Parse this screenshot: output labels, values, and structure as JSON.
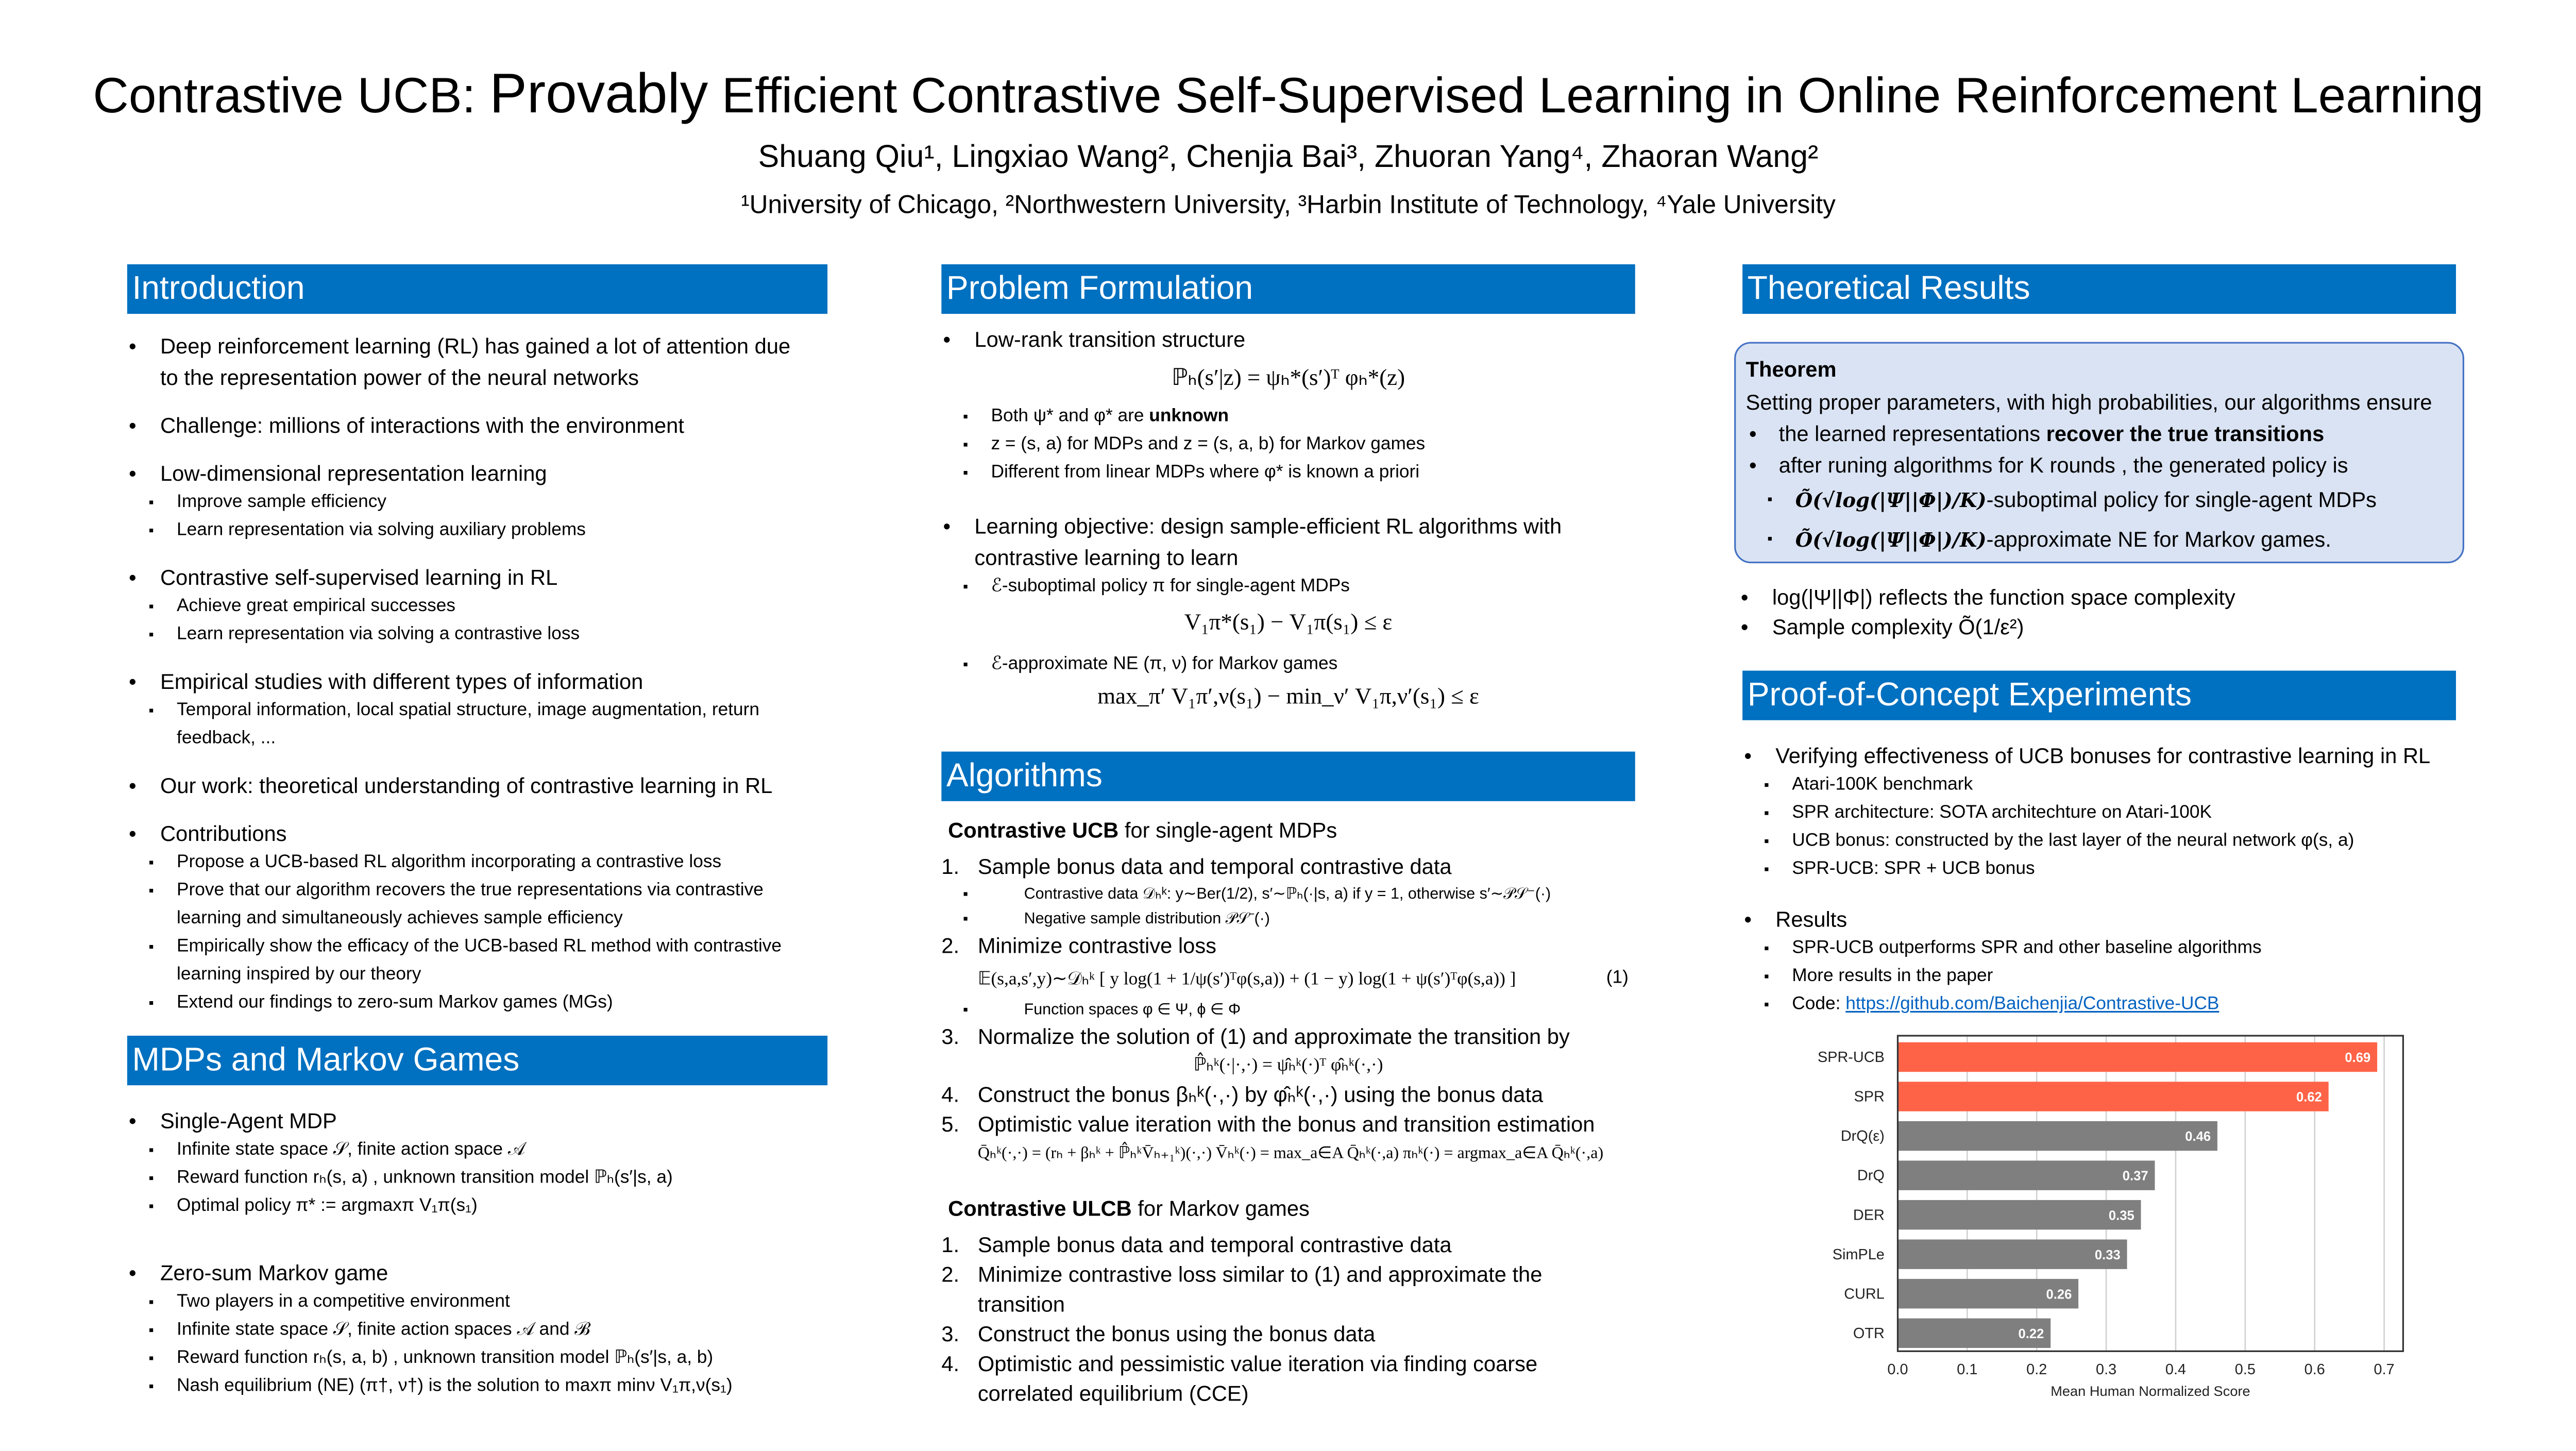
{
  "title": {
    "part1": "Contrastive UCB:",
    "part2": "Provably",
    "part3": "Efficient Contrastive Self-Supervised Learning in Online Reinforcement Learning"
  },
  "authors": "Shuang Qiu¹, Lingxiao Wang², Chenjia Bai³, Zhuoran Yang⁴, Zhaoran Wang²",
  "affiliations": "¹University of Chicago, ²Northwestern University, ³Harbin Institute of Technology, ⁴Yale University",
  "colors": {
    "header": "#0070c0",
    "theorem_bg": "#dae3f3",
    "theorem_border": "#4472c4",
    "highlight_bar": "#ff6347",
    "baseline_bar": "#7f7f7f"
  },
  "intro": {
    "heading": "Introduction",
    "items": [
      {
        "text": "Deep reinforcement learning (RL) has gained a lot of attention due to the representation power of the neural networks",
        "subs": []
      },
      {
        "text": "Challenge: millions of interactions with the environment",
        "subs": []
      },
      {
        "text": "Low-dimensional representation learning",
        "subs": [
          "Improve sample efficiency",
          "Learn representation via solving auxiliary problems"
        ]
      },
      {
        "text": "Contrastive self-supervised learning in RL",
        "subs": [
          "Achieve great empirical successes",
          "Learn representation via solving a contrastive loss"
        ]
      },
      {
        "text": "Empirical studies with different types of information",
        "subs": [
          "Temporal information, local spatial structure, image augmentation, return feedback, ..."
        ]
      },
      {
        "text": "Our work: theoretical understanding of contrastive learning in RL",
        "subs": []
      },
      {
        "text": "Contributions",
        "subs": [
          "Propose a UCB-based RL algorithm incorporating a contrastive loss",
          "Prove that our algorithm recovers the true representations via contrastive learning and simultaneously achieves sample efficiency",
          "Empirically show the efficacy of the UCB-based RL method with contrastive learning inspired by our theory",
          "Extend our findings to zero-sum Markov games (MGs)"
        ]
      }
    ]
  },
  "mdps": {
    "heading": "MDPs and Markov Games",
    "items": [
      {
        "text": "Single-Agent MDP",
        "subs": [
          "Infinite state space 𝒮, finite action space 𝒜",
          "Reward function rₕ(s, a) , unknown transition model ℙₕ(s′|s, a)",
          "Optimal policy π* := argmaxπ V₁π(s₁)"
        ]
      },
      {
        "text": "Zero-sum Markov game",
        "subs": [
          "Two players in a competitive environment",
          "Infinite state space 𝒮, finite action spaces 𝒜 and ℬ",
          "Reward function rₕ(s, a, b) , unknown transition model ℙₕ(s′|s, a, b)",
          "Nash equilibrium (NE) (π†, ν†) is the solution to  maxπ minν V₁π,ν(s₁)"
        ]
      }
    ]
  },
  "problem": {
    "heading": "Problem Formulation",
    "item1": "Low-rank transition structure",
    "eq1": "ℙₕ(s′|z) = ψₕ*(s′)ᵀ φₕ*(z)",
    "subs1_a": "Both ψ* and φ* are ",
    "subs1_a_bold": "unknown",
    "subs1": [
      "z = (s, a) for MDPs and z = (s, a, b) for Markov games",
      "Different from linear MDPs where φ* is known a priori"
    ],
    "item2": "Learning objective: design sample-efficient RL algorithms with contrastive learning to learn",
    "sub2a": "ℰ-suboptimal policy π for single-agent MDPs",
    "eq2": "V₁π*(s₁) − V₁π(s₁) ≤ ε",
    "sub2b": "ℰ-approximate NE (π, ν) for Markov games",
    "eq3": "max_π′ V₁π′,ν(s₁) − min_ν′ V₁π,ν′(s₁) ≤ ε"
  },
  "algorithms": {
    "heading": "Algorithms",
    "ucb_title_bold": "Contrastive UCB",
    "ucb_title_rest": " for single-agent MDPs",
    "steps": [
      {
        "n": "1.",
        "text": "Sample bonus data and temporal contrastive data",
        "subs": [
          "Contrastive data 𝒟ₕᵏ: y∼Ber(1/2), s′∼ℙₕ(·|s, a) if y = 1, otherwise s′∼𝒫𝒮⁻(·)",
          "Negative sample distribution 𝒫𝒮⁻(·)"
        ]
      },
      {
        "n": "2.",
        "text": "Minimize contrastive loss",
        "subs": []
      },
      {
        "n": "3.",
        "text": "Normalize the solution of (1) and approximate the transition by",
        "subs": []
      },
      {
        "n": "4.",
        "text": "Construct the bonus βₕᵏ(·,·) by φ̂ₕᵏ(·,·) using the bonus data",
        "subs": []
      },
      {
        "n": "5.",
        "text": "Optimistic value iteration with the bonus and transition estimation",
        "subs": []
      }
    ],
    "loss_eq": "𝔼(s,a,s′,y)∼𝒟ₕᵏ [ y log(1 + 1/ψ(s′)ᵀφ(s,a)) + (1 − y) log(1 + ψ(s′)ᵀφ(s,a)) ]",
    "loss_label": "(1)",
    "func_spaces": "Function spaces φ ∈ Ψ, ϕ ∈ Φ",
    "transition_eq": "ℙ̂ₕᵏ(·|·,·) = ψ̂ₕᵏ(·)ᵀ φ̂ₕᵏ(·,·)",
    "vi_eq": "Q̄ₕᵏ(·,·) = (rₕ + βₕᵏ + ℙ̂ₕᵏV̄ₕ₊₁ᵏ)(·,·)    V̄ₕᵏ(·) = max_a∈A Q̄ₕᵏ(·,a)    πₕᵏ(·) = argmax_a∈A Q̄ₕᵏ(·,a)",
    "ulcb_title_bold": "Contrastive ULCB",
    "ulcb_title_rest": " for Markov games",
    "ulcb_steps": [
      {
        "n": "1.",
        "text": "Sample bonus data and temporal contrastive data"
      },
      {
        "n": "2.",
        "text": "Minimize contrastive loss similar to (1) and approximate the transition"
      },
      {
        "n": "3.",
        "text": "Construct the bonus using the bonus data"
      },
      {
        "n": "4.",
        "text": "Optimistic and pessimistic value iteration via finding coarse correlated equilibrium (CCE)"
      }
    ]
  },
  "theory": {
    "heading": "Theoretical Results",
    "thm_title": "Theorem",
    "thm_intro": "Setting proper parameters, with high probabilities, our algorithms ensure",
    "b1_pre": "the learned representations ",
    "b1_bold": "recover the true transitions",
    "b2": "after runing algorithms for K rounds , the generated policy is",
    "sub_bound": "Õ(√log(|Ψ||Φ|)/K)",
    "sub1_rest": "-suboptimal policy for single-agent MDPs",
    "sub2_rest": "-approximate NE for Markov games.",
    "after": [
      "log(|Ψ||Φ|) reflects the function space complexity",
      "Sample complexity Õ(1/ε²)"
    ]
  },
  "experiments": {
    "heading": "Proof-of-Concept Experiments",
    "item1": "Verifying effectiveness of UCB bonuses for contrastive learning in RL",
    "subs1": [
      "Atari-100K benchmark",
      "SPR architecture: SOTA architechture on Atari-100K",
      "UCB bonus: constructed by the last layer of the neural network φ(s, a)",
      "SPR-UCB: SPR + UCB bonus"
    ],
    "item2": "Results",
    "subs2": [
      "SPR-UCB outperforms SPR and other baseline algorithms",
      "More results in the paper"
    ],
    "code_label": "Code: ",
    "code_link": "https://github.com/Baichenjia/Contrastive-UCB"
  },
  "chart_data": {
    "type": "bar",
    "orientation": "horizontal",
    "categories": [
      "SPR-UCB",
      "SPR",
      "DrQ(ε)",
      "DrQ",
      "DER",
      "SimPLe",
      "CURL",
      "OTR"
    ],
    "values": [
      0.69,
      0.62,
      0.46,
      0.37,
      0.35,
      0.33,
      0.26,
      0.22
    ],
    "value_labels": [
      "0.69",
      "0.62",
      "0.46",
      "0.37",
      "0.35",
      "0.33",
      "0.26",
      "0.22"
    ],
    "highlighted": [
      "SPR-UCB",
      "SPR"
    ],
    "xlabel": "Mean Human Normalized Score",
    "ylabel": "",
    "xlim": [
      0,
      0.72
    ],
    "xticks": [
      "0.0",
      "0.1",
      "0.2",
      "0.3",
      "0.4",
      "0.5",
      "0.6",
      "0.7"
    ],
    "grid": "vertical",
    "legend": "none"
  }
}
